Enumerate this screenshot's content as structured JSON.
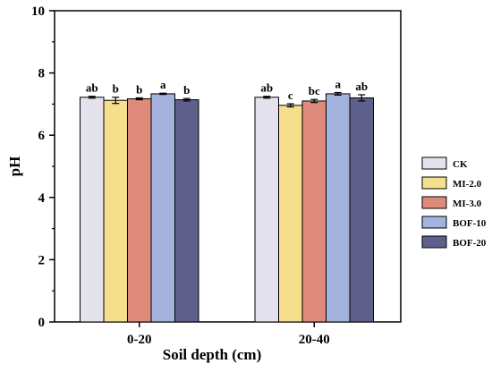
{
  "chart_data": {
    "type": "bar",
    "title": "",
    "xlabel": "Soil depth (cm)",
    "ylabel": "pH",
    "ylim": [
      0,
      10
    ],
    "yticks": [
      0,
      2,
      4,
      6,
      8,
      10
    ],
    "categories": [
      "0-20",
      "20-40"
    ],
    "grid": false,
    "legend_position": "right",
    "series": [
      {
        "name": "CK",
        "color": "#e4e2ec",
        "values": [
          7.22,
          7.22
        ],
        "errors": [
          0.03,
          0.03
        ],
        "labels": [
          "ab",
          "ab"
        ]
      },
      {
        "name": "MI-2.0",
        "color": "#f5df8c",
        "values": [
          7.12,
          6.96
        ],
        "errors": [
          0.1,
          0.05
        ],
        "labels": [
          "b",
          "c"
        ]
      },
      {
        "name": "MI-3.0",
        "color": "#dd8a7b",
        "values": [
          7.17,
          7.1
        ],
        "errors": [
          0.03,
          0.05
        ],
        "labels": [
          "b",
          "bc"
        ]
      },
      {
        "name": "BOF-10",
        "color": "#a4b3dd",
        "values": [
          7.33,
          7.33
        ],
        "errors": [
          0.02,
          0.04
        ],
        "labels": [
          "a",
          "a"
        ]
      },
      {
        "name": "BOF-20",
        "color": "#5f5f8c",
        "values": [
          7.14,
          7.2
        ],
        "errors": [
          0.04,
          0.1
        ],
        "labels": [
          "b",
          "ab"
        ]
      }
    ]
  }
}
